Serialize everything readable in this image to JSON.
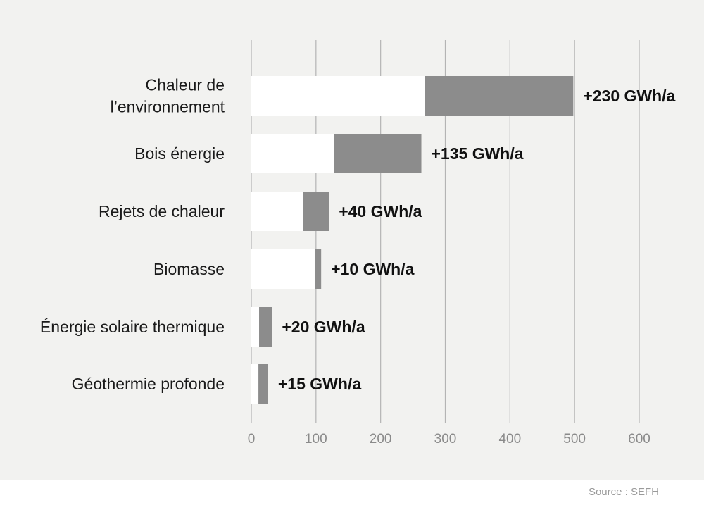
{
  "chart_data": {
    "type": "bar",
    "categories": [
      "Chaleur de l’environnement",
      "Bois énergie",
      "Rejets de chaleur",
      "Biomasse",
      "Énergie solaire thermique",
      "Géothermie profonde"
    ],
    "category_lines": [
      [
        "Chaleur de",
        "l’environnement"
      ],
      [
        "Bois énergie"
      ],
      [
        "Rejets de chaleur"
      ],
      [
        "Biomasse"
      ],
      [
        "Énergie solaire thermique"
      ],
      [
        "Géothermie profonde"
      ]
    ],
    "series": [
      {
        "values": [
          268,
          128,
          80,
          98,
          12,
          11
        ]
      },
      {
        "values": [
          230,
          135,
          40,
          10,
          20,
          15
        ]
      }
    ],
    "data_labels": [
      "+230 GWh/a",
      "+135 GWh/a",
      "+40 GWh/a",
      "+10 GWh/a",
      "+20 GWh/a",
      "+15 GWh/a"
    ],
    "xticks": [
      0,
      100,
      200,
      300,
      400,
      500,
      600
    ],
    "xlim": [
      0,
      600
    ],
    "orientation": "horizontal",
    "stacked": true,
    "grid": true,
    "colors": {
      "base": "#ffffff",
      "increase": "#8c8c8c",
      "grid": "#b4b4b4",
      "background": "#f2f2f0"
    }
  },
  "source": "Source : SEFH"
}
